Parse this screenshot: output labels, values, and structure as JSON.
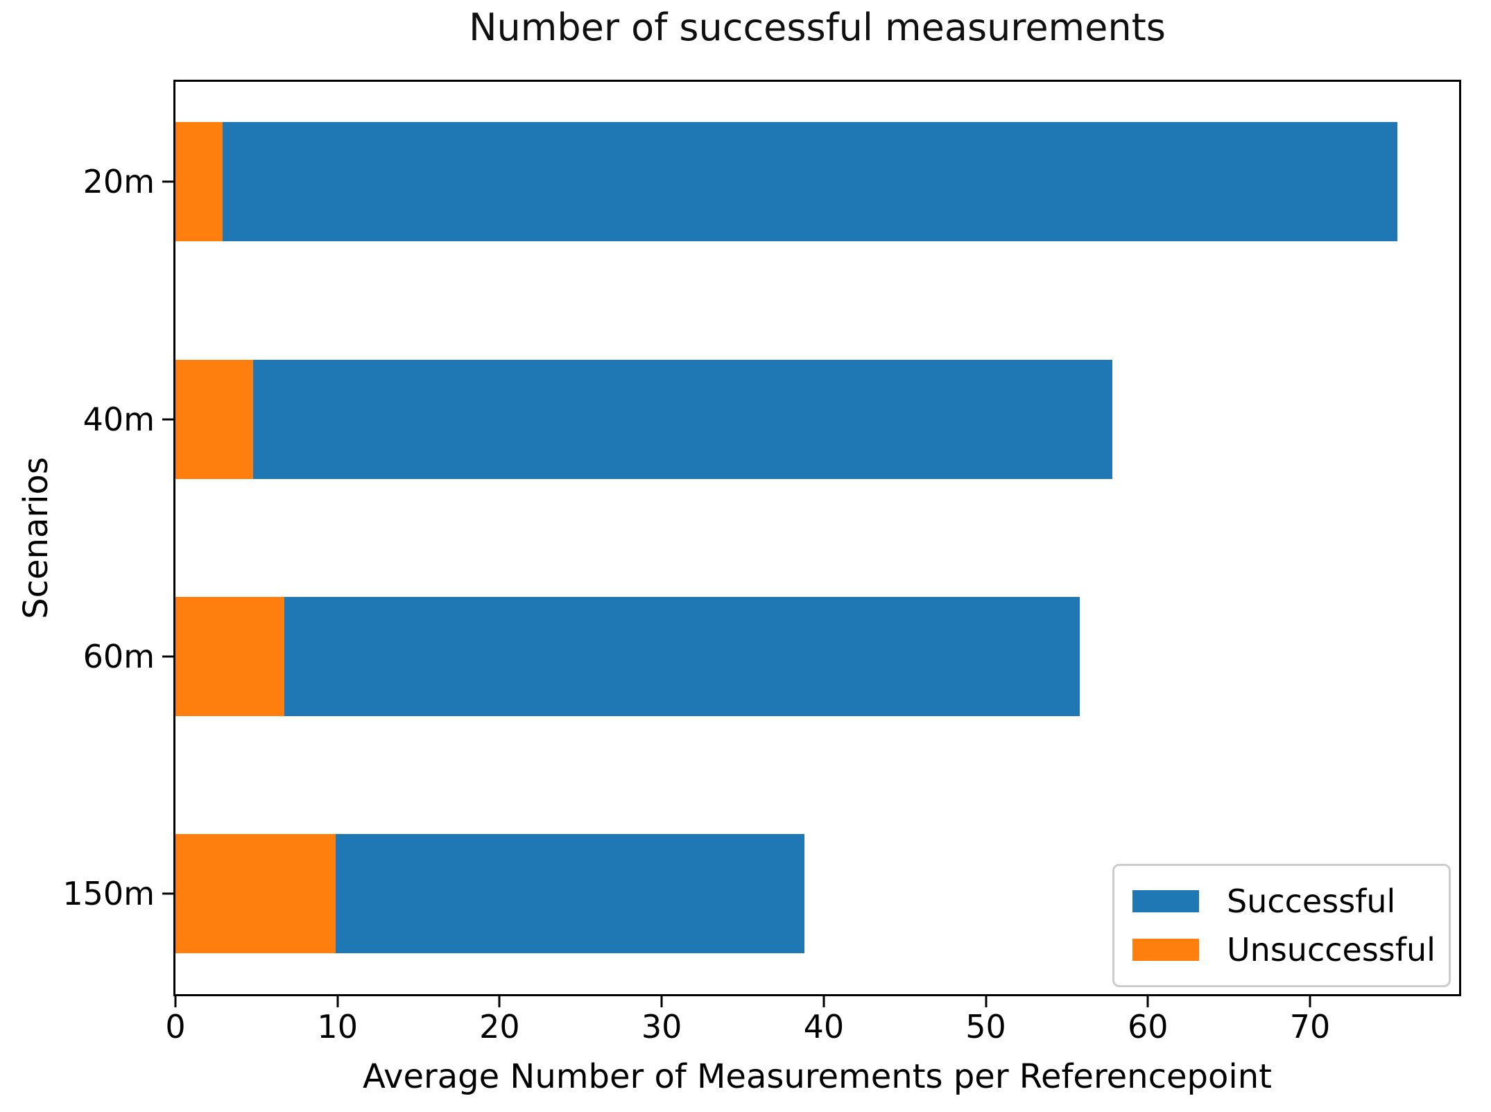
{
  "chart_data": {
    "type": "bar",
    "orientation": "horizontal",
    "stacked": true,
    "title": "Number of successful measurements",
    "xlabel": "Average Number of Measurements per Referencepoint",
    "ylabel": "Scenarios",
    "categories": [
      "20m",
      "40m",
      "60m",
      "150m"
    ],
    "series": [
      {
        "name": "Unsuccessful",
        "color": "#ff7f0e",
        "values": [
          2.9,
          4.8,
          6.7,
          9.9
        ]
      },
      {
        "name": "Successful",
        "color": "#1f77b4",
        "values": [
          72.5,
          53.0,
          49.1,
          28.9
        ]
      }
    ],
    "bar_totals": [
      75.4,
      57.8,
      55.8,
      38.8
    ],
    "x_ticks": [
      0,
      10,
      20,
      30,
      40,
      50,
      60,
      70
    ],
    "xlim": [
      0,
      79.2
    ],
    "grid": false,
    "legend": {
      "position": "lower right",
      "entries": [
        {
          "label": "Successful",
          "color": "#1f77b4"
        },
        {
          "label": "Unsuccessful",
          "color": "#ff7f0e"
        }
      ]
    }
  }
}
